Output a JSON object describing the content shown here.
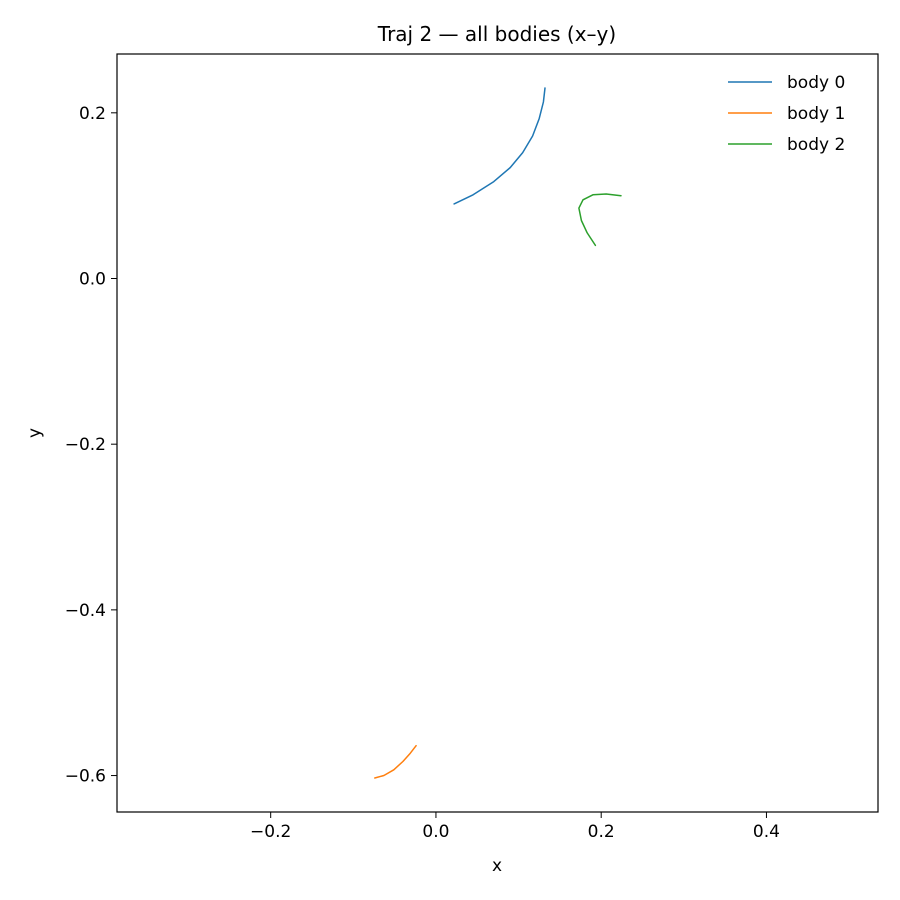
{
  "chart_data": {
    "type": "line",
    "title": "Traj 2 — all bodies (x–y)",
    "xlabel": "x",
    "ylabel": "y",
    "xlim": [
      -0.386,
      0.535
    ],
    "ylim": [
      -0.644,
      0.271
    ],
    "xticks": [
      -0.2,
      0.0,
      0.2,
      0.4
    ],
    "xtick_labels": [
      "−0.2",
      "0.0",
      "0.2",
      "0.4"
    ],
    "yticks": [
      0.2,
      0.0,
      -0.2,
      -0.4,
      -0.6
    ],
    "ytick_labels": [
      "0.2",
      "0.0",
      "−0.2",
      "−0.4",
      "−0.6"
    ],
    "grid": false,
    "legend_position": "top-right",
    "series": [
      {
        "name": "body 0",
        "color": "#1f77b4",
        "points": [
          [
            0.022,
            0.09
          ],
          [
            0.045,
            0.101
          ],
          [
            0.07,
            0.117
          ],
          [
            0.09,
            0.134
          ],
          [
            0.105,
            0.152
          ],
          [
            0.117,
            0.172
          ],
          [
            0.125,
            0.193
          ],
          [
            0.13,
            0.213
          ],
          [
            0.132,
            0.23
          ]
        ]
      },
      {
        "name": "body 1",
        "color": "#ff7f0e",
        "points": [
          [
            -0.074,
            -0.603
          ],
          [
            -0.063,
            -0.6
          ],
          [
            -0.051,
            -0.593
          ],
          [
            -0.04,
            -0.583
          ],
          [
            -0.031,
            -0.573
          ],
          [
            -0.024,
            -0.564
          ]
        ]
      },
      {
        "name": "body 2",
        "color": "#2ca02c",
        "points": [
          [
            0.193,
            0.04
          ],
          [
            0.183,
            0.055
          ],
          [
            0.176,
            0.07
          ],
          [
            0.173,
            0.085
          ],
          [
            0.178,
            0.095
          ],
          [
            0.19,
            0.101
          ],
          [
            0.206,
            0.102
          ],
          [
            0.224,
            0.1
          ]
        ]
      }
    ]
  }
}
